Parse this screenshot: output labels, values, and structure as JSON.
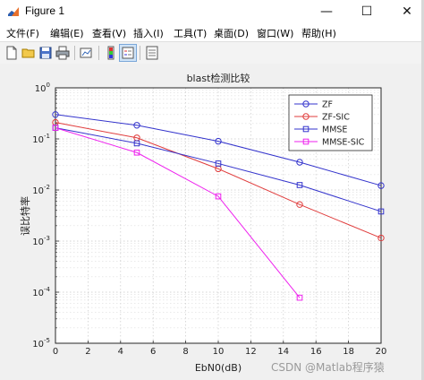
{
  "window": {
    "title": "Figure 1",
    "minimize": "—",
    "maximize": "☐",
    "close": "✕"
  },
  "menu": [
    "文件(F)",
    "编辑(E)",
    "查看(V)",
    "插入(I)",
    "工具(T)",
    "桌面(D)",
    "窗口(W)",
    "帮助(H)"
  ],
  "toolbar": [
    "new-figure-icon",
    "open-file-icon",
    "save-icon",
    "print-icon",
    "link-plot-icon",
    "toggle-colorbar-icon",
    "toggle-legend-icon",
    "property-inspector-icon"
  ],
  "chart_data": {
    "type": "line",
    "title": "blast检测比较",
    "xlabel": "EbN0(dB)",
    "ylabel": "误比特率",
    "yscale": "log",
    "xlim": [
      0,
      20
    ],
    "ylim": [
      1e-05,
      1
    ],
    "xticks": [
      "0",
      "2",
      "4",
      "6",
      "8",
      "10",
      "12",
      "14",
      "16",
      "18",
      "20"
    ],
    "yticks": [
      "10-5",
      "10-4",
      "10-3",
      "10-2",
      "10-1",
      "100"
    ],
    "grid": true,
    "legend_position": "top-right",
    "series": [
      {
        "name": "ZF",
        "color": "#3333cc",
        "marker": "circle",
        "x": [
          0,
          5,
          10,
          15,
          20
        ],
        "y": [
          0.3,
          0.185,
          0.09,
          0.035,
          0.0122
        ]
      },
      {
        "name": "ZF-SIC",
        "color": "#e03c3c",
        "marker": "circle",
        "x": [
          0,
          5,
          10,
          15,
          20
        ],
        "y": [
          0.21,
          0.105,
          0.026,
          0.0052,
          0.00115
        ]
      },
      {
        "name": "MMSE",
        "color": "#3333cc",
        "marker": "square",
        "x": [
          0,
          5,
          10,
          15,
          20
        ],
        "y": [
          0.165,
          0.082,
          0.033,
          0.0125,
          0.0038
        ]
      },
      {
        "name": "MMSE-SIC",
        "color": "#ee22ee",
        "marker": "square",
        "x": [
          0,
          5,
          10,
          15
        ],
        "y": [
          0.165,
          0.054,
          0.0075,
          7.8e-05
        ]
      }
    ]
  },
  "watermark": "CSDN @Matlab程序猿"
}
